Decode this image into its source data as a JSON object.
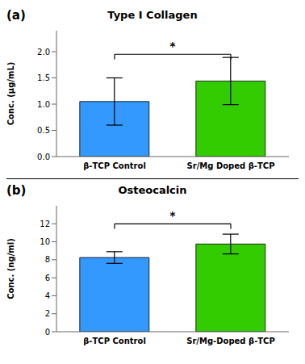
{
  "chart_data": [
    {
      "type": "bar",
      "title": "Type I Collagen",
      "panel_label": "(a)",
      "ylabel": "Conc. (μg/mL)",
      "categories": [
        "β-TCP Control",
        "Sr/Mg Doped β-TCP"
      ],
      "values": [
        1.05,
        1.44
      ],
      "error_up": [
        0.45,
        0.45
      ],
      "error_down": [
        0.45,
        0.45
      ],
      "colors": [
        "#3399FF",
        "#33CC00"
      ],
      "ylim": [
        0,
        2.4
      ],
      "yticks": [
        {
          "value": 0,
          "label": "0.0"
        },
        0.5,
        {
          "value": 1.0,
          "label": "1.0"
        },
        1.5,
        {
          "value": 2.0,
          "label": "2.0"
        }
      ],
      "annotations": [
        {
          "text": "*",
          "y": 1.95,
          "from": "β-TCP Control",
          "to": "Sr/Mg Doped β-TCP"
        }
      ]
    },
    {
      "type": "bar",
      "title": "Osteocalcin",
      "panel_label": "(b)",
      "ylabel": "Conc. (ng/ml)",
      "categories": [
        "β-TCP Control",
        "Sr/Mg-Doped β-TCP"
      ],
      "values": [
        8.25,
        9.75
      ],
      "error_up": [
        0.65,
        1.1
      ],
      "error_down": [
        0.65,
        1.1
      ],
      "colors": [
        "#3399FF",
        "#33CC00"
      ],
      "ylim": [
        0,
        14.0
      ],
      "yticks": [
        0,
        2,
        4,
        6,
        8,
        10,
        12
      ],
      "annotations": [
        {
          "text": "*",
          "y": 12.0,
          "from": "β-TCP Control",
          "to": "Sr/Mg-Doped β-TCP"
        }
      ]
    }
  ]
}
